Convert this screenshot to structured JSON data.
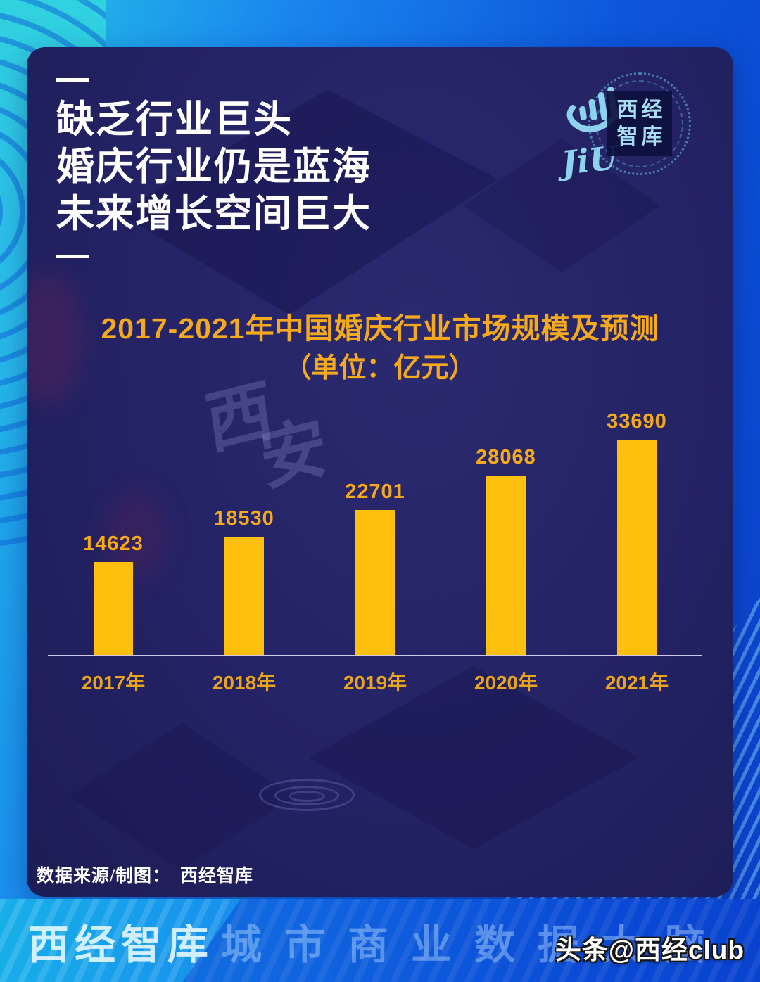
{
  "header": {
    "title_lines": [
      "缺乏行业巨头",
      "婚庆行业仍是蓝海",
      "未来增长空间巨大"
    ]
  },
  "logo": {
    "jiu_text": "JiU",
    "emblem_line1": "西经",
    "emblem_line2": "智库"
  },
  "chart_data": {
    "type": "bar",
    "title": "2017-2021年中国婚庆行业市场规模及预测",
    "subtitle": "（单位：亿元）",
    "unit": "亿元",
    "categories": [
      "2017年",
      "2018年",
      "2019年",
      "2020年",
      "2021年"
    ],
    "values": [
      14623,
      18530,
      22701,
      28068,
      33690
    ],
    "ylim": [
      0,
      36000
    ],
    "grid": false,
    "legend_position": "none",
    "bar_color": "#FEC00F",
    "value_label_color": "#F7A91C",
    "category_label_color": "#E9A41F",
    "axis_color": "#CFC9EA"
  },
  "background_watermark_text": "西安",
  "footer": {
    "source_label": "数据来源/制图：",
    "source_value": "西经智库"
  },
  "banner": {
    "text_primary": "西经智库",
    "text_secondary": "城市商业数据大脑"
  },
  "watermark": {
    "text": "头条@西经club"
  },
  "colors": {
    "panel_bg": "#232264",
    "outer_blue": "#0D55DA",
    "cyan_accent": "#2BD0E2",
    "gold_accent": "#F5A91C",
    "logo_blue": "#8FD2EE"
  }
}
